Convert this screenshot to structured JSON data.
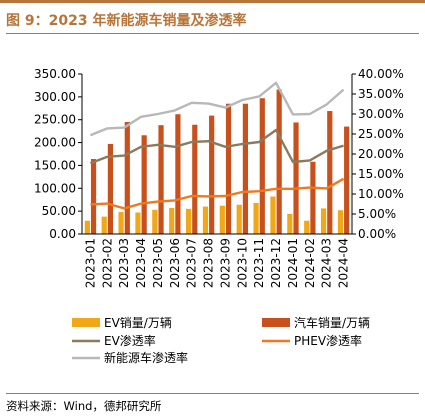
{
  "figure": {
    "title": "图 9：2023 年新能源车销量及渗透率",
    "source": "资料来源：Wind，德邦研究所"
  },
  "chart_data": {
    "type": "bar",
    "categories": [
      "2023-01",
      "2023-02",
      "2023-03",
      "2023-04",
      "2023-05",
      "2023-06",
      "2023-07",
      "2023-08",
      "2023-09",
      "2023-10",
      "2023-11",
      "2023-12",
      "2024-01",
      "2024-02",
      "2024-03",
      "2024-04"
    ],
    "series": [
      {
        "name": "EV销量/万辆",
        "type": "bar",
        "axis": "left",
        "color": "#f0a818",
        "values": [
          29,
          38,
          48,
          47,
          53,
          57,
          55,
          60,
          62,
          64,
          68,
          82,
          44,
          29,
          56,
          52
        ]
      },
      {
        "name": "汽车销量/万辆",
        "type": "bar",
        "axis": "left",
        "color": "#c8501c",
        "values": [
          164,
          197,
          245,
          216,
          238,
          262,
          239,
          259,
          285,
          285,
          297,
          316,
          244,
          158,
          269,
          235
        ]
      },
      {
        "name": "EV渗透率",
        "type": "line",
        "axis": "right",
        "color": "#8c7a5e",
        "values": [
          17.7,
          19.3,
          19.6,
          21.8,
          22.3,
          21.8,
          23.0,
          23.2,
          21.8,
          22.5,
          23.0,
          26.0,
          18.0,
          18.4,
          20.8,
          22.1
        ]
      },
      {
        "name": "PHEV渗透率",
        "type": "line",
        "axis": "right",
        "color": "#f07820",
        "values": [
          7.4,
          7.6,
          6.4,
          7.6,
          8.1,
          8.4,
          9.5,
          9.4,
          9.5,
          10.5,
          10.7,
          11.3,
          11.3,
          11.6,
          11.4,
          13.8
        ]
      },
      {
        "name": "新能源车渗透率",
        "type": "line",
        "axis": "right",
        "color": "#b8b8b8",
        "values": [
          24.7,
          26.4,
          26.6,
          29.3,
          30.0,
          30.9,
          32.8,
          32.6,
          31.6,
          33.5,
          34.4,
          37.8,
          29.9,
          30.0,
          32.4,
          36.1
        ]
      }
    ],
    "y_left": {
      "ylim": [
        0,
        350
      ],
      "ticks": [
        "0.00",
        "50.00",
        "100.00",
        "150.00",
        "200.00",
        "250.00",
        "300.00",
        "350.00"
      ]
    },
    "y_right": {
      "ylim": [
        0,
        40
      ],
      "ticks": [
        "0.00%",
        "5.00%",
        "10.00%",
        "15.00%",
        "20.00%",
        "25.00%",
        "30.00%",
        "35.00%",
        "40.00%"
      ]
    },
    "grid": false,
    "legend_position": "bottom"
  }
}
